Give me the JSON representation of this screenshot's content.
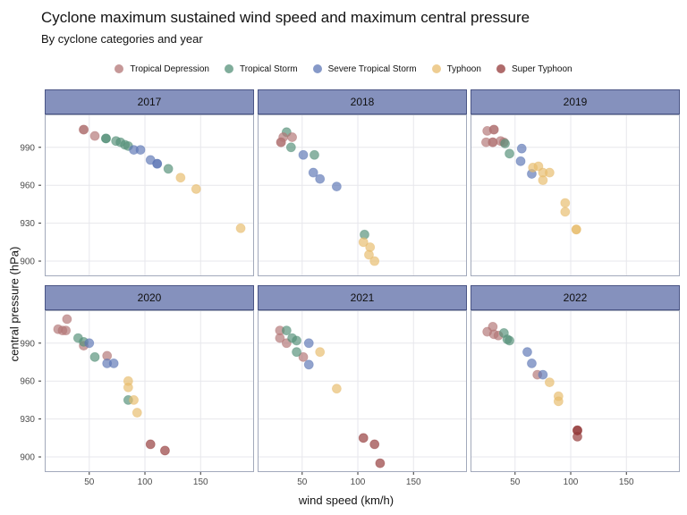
{
  "header": {
    "title": "Cyclone maximum sustained wind speed and maximum central pressure",
    "subtitle": "By cyclone categories and year"
  },
  "style": {
    "strip_fill": "#8591bd",
    "strip_border": "#4a5585",
    "panel_border": "#a2a9bb",
    "gridline_color": "#e7e7ec",
    "tick_label_color": "#4d4d4d",
    "tick_mark_color": "#333333",
    "point_opacity": 0.68
  },
  "chart_data": {
    "type": "scatter",
    "title": "Cyclone maximum sustained wind speed and maximum central pressure",
    "subtitle": "By cyclone categories and year",
    "xlabel": "wind speed (km/h)",
    "ylabel": "central pressure (hPa)",
    "xlim": [
      10,
      198
    ],
    "ylim": [
      888,
      1016
    ],
    "x_ticks": [
      50,
      100,
      150
    ],
    "y_ticks": [
      990,
      960,
      930,
      900
    ],
    "grid": "major-only",
    "legend_position": "top-center",
    "categories": [
      {
        "name": "Tropical Depression",
        "color": "#b37676"
      },
      {
        "name": "Tropical Storm",
        "color": "#559179"
      },
      {
        "name": "Severe Tropical Storm",
        "color": "#5e77b5"
      },
      {
        "name": "Typhoon",
        "color": "#e8bc6d"
      },
      {
        "name": "Super Typhoon",
        "color": "#943a3a"
      }
    ],
    "point_format": [
      "category_index",
      "wind_kmh",
      "pressure_hPa"
    ],
    "facets": [
      {
        "year": "2017",
        "points": [
          [
            0,
            45,
            1004
          ],
          [
            0,
            45,
            1004
          ],
          [
            0,
            55,
            999
          ],
          [
            1,
            65,
            997
          ],
          [
            1,
            65,
            997
          ],
          [
            1,
            74,
            995
          ],
          [
            1,
            78,
            994
          ],
          [
            1,
            82,
            992
          ],
          [
            1,
            85,
            991
          ],
          [
            1,
            121,
            973
          ],
          [
            2,
            90,
            988
          ],
          [
            2,
            96,
            988
          ],
          [
            2,
            105,
            980
          ],
          [
            2,
            111,
            977
          ],
          [
            2,
            111,
            977
          ],
          [
            3,
            132,
            966
          ],
          [
            3,
            146,
            957
          ],
          [
            3,
            186,
            926
          ]
        ]
      },
      {
        "year": "2018",
        "points": [
          [
            1,
            36,
            1002
          ],
          [
            0,
            33,
            998
          ],
          [
            0,
            41,
            998
          ],
          [
            0,
            31,
            994
          ],
          [
            0,
            31,
            994
          ],
          [
            1,
            40,
            990
          ],
          [
            2,
            51,
            984
          ],
          [
            1,
            61,
            984
          ],
          [
            2,
            60,
            970
          ],
          [
            2,
            66,
            965
          ],
          [
            2,
            81,
            959
          ],
          [
            1,
            106,
            921
          ],
          [
            3,
            105,
            915
          ],
          [
            3,
            111,
            911
          ],
          [
            3,
            110,
            905
          ],
          [
            3,
            115,
            900
          ]
        ]
      },
      {
        "year": "2019",
        "points": [
          [
            0,
            25,
            1003
          ],
          [
            0,
            31,
            1004
          ],
          [
            0,
            31,
            1004
          ],
          [
            0,
            24,
            994
          ],
          [
            0,
            30,
            994
          ],
          [
            0,
            30,
            994
          ],
          [
            0,
            37,
            995
          ],
          [
            0,
            40,
            994
          ],
          [
            1,
            41,
            993
          ],
          [
            1,
            45,
            985
          ],
          [
            2,
            56,
            989
          ],
          [
            2,
            55,
            979
          ],
          [
            2,
            65,
            969
          ],
          [
            3,
            66,
            974
          ],
          [
            3,
            71,
            975
          ],
          [
            3,
            75,
            970
          ],
          [
            3,
            81,
            970
          ],
          [
            3,
            75,
            964
          ],
          [
            3,
            95,
            946
          ],
          [
            3,
            95,
            939
          ],
          [
            3,
            105,
            925
          ],
          [
            3,
            105,
            925
          ]
        ]
      },
      {
        "year": "2020",
        "points": [
          [
            0,
            30,
            1009
          ],
          [
            0,
            22,
            1001
          ],
          [
            0,
            26,
            1000
          ],
          [
            0,
            29,
            1000
          ],
          [
            0,
            45,
            988
          ],
          [
            0,
            66,
            980
          ],
          [
            1,
            40,
            994
          ],
          [
            1,
            45,
            991
          ],
          [
            1,
            55,
            979
          ],
          [
            1,
            85,
            945
          ],
          [
            2,
            50,
            990
          ],
          [
            2,
            66,
            974
          ],
          [
            2,
            72,
            974
          ],
          [
            3,
            85,
            960
          ],
          [
            3,
            85,
            955
          ],
          [
            3,
            90,
            945
          ],
          [
            3,
            93,
            935
          ],
          [
            4,
            105,
            910
          ],
          [
            4,
            118,
            905
          ]
        ]
      },
      {
        "year": "2021",
        "points": [
          [
            0,
            30,
            1000
          ],
          [
            0,
            30,
            994
          ],
          [
            0,
            36,
            990
          ],
          [
            0,
            51,
            979
          ],
          [
            1,
            36,
            1000
          ],
          [
            1,
            41,
            994
          ],
          [
            1,
            45,
            992
          ],
          [
            1,
            45,
            983
          ],
          [
            2,
            56,
            990
          ],
          [
            2,
            56,
            973
          ],
          [
            3,
            66,
            983
          ],
          [
            3,
            81,
            954
          ],
          [
            4,
            105,
            915
          ],
          [
            4,
            115,
            910
          ],
          [
            4,
            120,
            895
          ]
        ]
      },
      {
        "year": "2022",
        "points": [
          [
            0,
            30,
            1003
          ],
          [
            0,
            25,
            999
          ],
          [
            0,
            31,
            997
          ],
          [
            0,
            35,
            996
          ],
          [
            0,
            70,
            965
          ],
          [
            1,
            40,
            998
          ],
          [
            1,
            43,
            993
          ],
          [
            1,
            45,
            992
          ],
          [
            2,
            61,
            983
          ],
          [
            2,
            65,
            974
          ],
          [
            2,
            75,
            965
          ],
          [
            3,
            81,
            959
          ],
          [
            3,
            89,
            948
          ],
          [
            3,
            89,
            944
          ],
          [
            4,
            106,
            921
          ],
          [
            4,
            106,
            921
          ],
          [
            4,
            106,
            916
          ]
        ]
      }
    ]
  }
}
